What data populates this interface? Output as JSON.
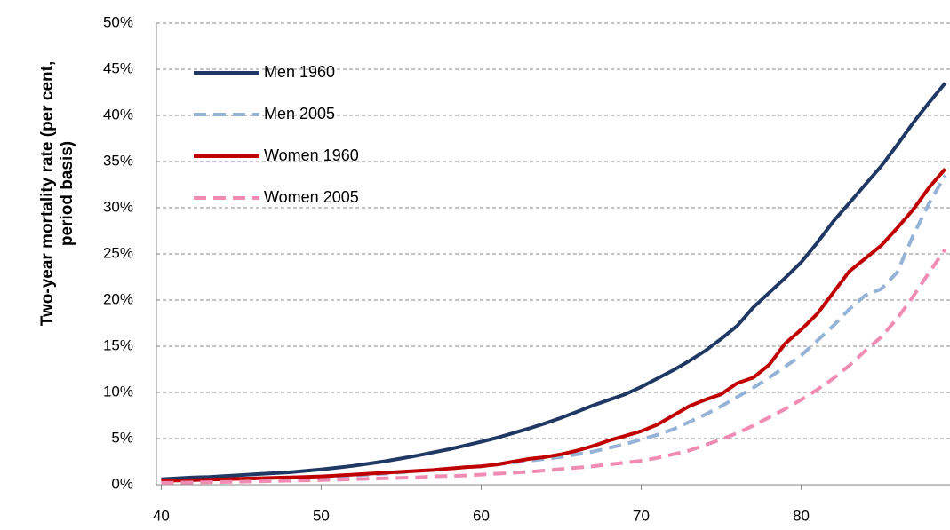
{
  "chart_data": {
    "type": "line",
    "y_label": "Two-year mortality rate (per cent, period basis)",
    "x": [
      40,
      41,
      42,
      43,
      44,
      45,
      46,
      47,
      48,
      49,
      50,
      51,
      52,
      53,
      54,
      55,
      56,
      57,
      58,
      59,
      60,
      61,
      62,
      63,
      64,
      65,
      66,
      67,
      68,
      69,
      70,
      71,
      72,
      73,
      74,
      75,
      76,
      77,
      78,
      79,
      80,
      81,
      82,
      83,
      84,
      85,
      86,
      87,
      88,
      89
    ],
    "series": [
      {
        "name": "Men 1960",
        "color": "#1f3864",
        "dashed": false,
        "values": [
          0.6,
          0.7,
          0.8,
          0.85,
          0.95,
          1.05,
          1.15,
          1.25,
          1.35,
          1.5,
          1.65,
          1.85,
          2.05,
          2.3,
          2.55,
          2.85,
          3.15,
          3.5,
          3.85,
          4.25,
          4.65,
          5.1,
          5.6,
          6.1,
          6.65,
          7.25,
          7.9,
          8.6,
          9.2,
          9.8,
          10.6,
          11.5,
          12.4,
          13.4,
          14.5,
          15.8,
          17.2,
          19.2,
          20.8,
          22.4,
          24.1,
          26.2,
          28.5,
          30.5,
          32.5,
          34.5,
          36.8,
          39.2,
          41.4,
          43.5
        ]
      },
      {
        "name": "Men 2005",
        "color": "#95b3d7",
        "dashed": true,
        "values": [
          0.2,
          0.25,
          0.3,
          0.35,
          0.4,
          0.45,
          0.5,
          0.55,
          0.6,
          0.7,
          0.8,
          0.9,
          1.0,
          1.1,
          1.2,
          1.35,
          1.5,
          1.6,
          1.75,
          1.9,
          2.0,
          2.2,
          2.4,
          2.6,
          2.8,
          3.0,
          3.3,
          3.6,
          4.0,
          4.4,
          4.9,
          5.4,
          6.0,
          6.8,
          7.6,
          8.5,
          9.5,
          10.5,
          11.6,
          12.8,
          14.0,
          15.6,
          17.2,
          19.0,
          20.5,
          21.2,
          23.0,
          27.0,
          30.5,
          33.5
        ]
      },
      {
        "name": "Women 1960",
        "color": "#c00000",
        "dashed": false,
        "values": [
          0.4,
          0.45,
          0.5,
          0.55,
          0.6,
          0.65,
          0.7,
          0.75,
          0.8,
          0.85,
          0.9,
          1.0,
          1.1,
          1.2,
          1.3,
          1.4,
          1.5,
          1.6,
          1.75,
          1.9,
          2.0,
          2.2,
          2.5,
          2.8,
          3.0,
          3.3,
          3.7,
          4.2,
          4.8,
          5.3,
          5.8,
          6.5,
          7.5,
          8.5,
          9.2,
          9.8,
          11.0,
          11.6,
          13.0,
          15.3,
          16.8,
          18.5,
          20.8,
          23.1,
          24.5,
          25.9,
          27.8,
          29.8,
          32.2,
          34.2
        ]
      },
      {
        "name": "Women 2005",
        "color": "#f08cb4",
        "dashed": true,
        "values": [
          0.2,
          0.22,
          0.25,
          0.28,
          0.3,
          0.33,
          0.36,
          0.4,
          0.43,
          0.47,
          0.5,
          0.55,
          0.6,
          0.65,
          0.7,
          0.75,
          0.8,
          0.9,
          0.95,
          1.0,
          1.1,
          1.2,
          1.3,
          1.4,
          1.55,
          1.7,
          1.85,
          2.0,
          2.2,
          2.4,
          2.6,
          2.9,
          3.3,
          3.7,
          4.3,
          4.9,
          5.6,
          6.4,
          7.3,
          8.2,
          9.2,
          10.3,
          11.5,
          12.9,
          14.5,
          16.0,
          18.0,
          20.4,
          23.0,
          25.5
        ]
      }
    ],
    "xlim": [
      39.7,
      89.3
    ],
    "xticks": [
      40,
      50,
      60,
      70,
      80
    ],
    "ylim": [
      0,
      50
    ],
    "yticks": [
      {
        "value": 0,
        "label": "0%"
      },
      {
        "value": 5,
        "label": "5%"
      },
      {
        "value": 10,
        "label": "10%"
      },
      {
        "value": 15,
        "label": "15%"
      },
      {
        "value": 20,
        "label": "20%"
      },
      {
        "value": 25,
        "label": "25%"
      },
      {
        "value": 30,
        "label": "30%"
      },
      {
        "value": 35,
        "label": "35%"
      },
      {
        "value": 40,
        "label": "40%"
      },
      {
        "value": 45,
        "label": "45%"
      },
      {
        "value": 50,
        "label": "50%"
      }
    ],
    "grid": true,
    "legend": "upper left"
  }
}
